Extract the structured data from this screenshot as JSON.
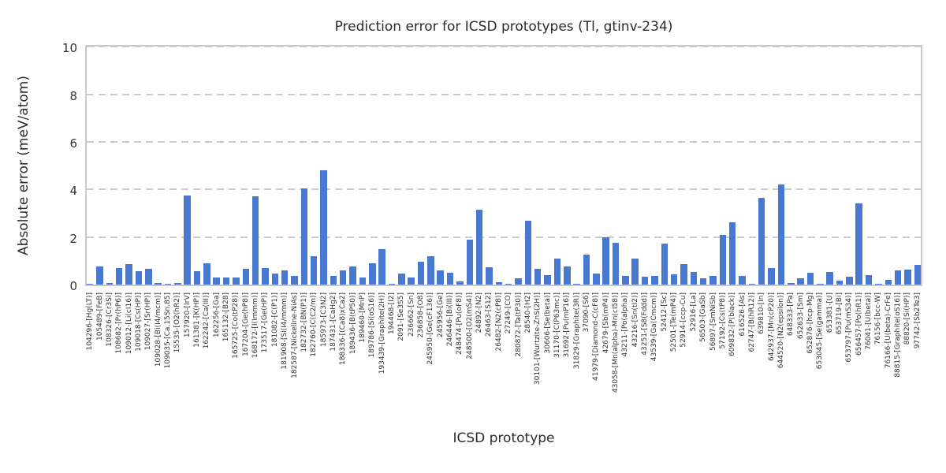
{
  "chart_data": {
    "type": "bar",
    "title": "Prediction error for ICSD prototypes (Tl, gtinv-234)",
    "xlabel": "ICSD prototype",
    "ylabel": "Absolute error (meV/atom)",
    "ylim": [
      0,
      10
    ],
    "yticks": [
      0,
      2,
      4,
      6,
      8,
      10
    ],
    "grid": "horizontal-dashed",
    "legend_position": "none",
    "bar_color": "#4878d0",
    "categories": [
      "104296-[Hg(LT)]",
      "105489-[FeB]",
      "108326-[Cr3Si]",
      "108682-[Pr(hP6)]",
      "109012-[Li(cI16)]",
      "109018-[Cs(HP)]",
      "109027-[Sr(HP)]",
      "109028-[Bi(I4/mcm)]",
      "109035-[Ca.15Sn.85]",
      "15535-[O2(hR2)]",
      "157920-[IrV]",
      "161381-[K(HP)]",
      "162242-[Ca(III)]",
      "162256-[Ga]",
      "165132-[B28]",
      "165725-[Co(tP28)]",
      "167204-[Ge(hP8)]",
      "168172-[I(Immm)]",
      "173517-[Ge(HP)]",
      "181082-[C(P1)]",
      "181908-[Si(I4/mmm)]",
      "182587-[Nickeline-NiAs]",
      "182732-[BN(P1)]",
      "182760-[C(C2/m)]",
      "185973-[C3N2]",
      "187431-[CaHg2]",
      "188336-[(Ca8)xCa2]",
      "189436-[B(tP50)]",
      "189460-[MnP]",
      "189786-[Si(oS16)]",
      "193439-[Graphite(2H)]",
      "194468-[I2]",
      "2091-[Se3S5]",
      "236662-[Sn]",
      "236858-[O8]",
      "245950-[Ge(cF136)]",
      "245956-[Ge]",
      "246446-[Bi(III)]",
      "248474-[Pu(oF8)]",
      "248500-[O2(mS4)]",
      "24892-[N2]",
      "26463-[S12]",
      "26482-[N2(cP8)]",
      "27249-[CO]",
      "280872-[Ta(tP30)]",
      "28540-[H2]",
      "30101-[Wurtzite-ZnS(2H)]",
      "30606-[Se(beta)]",
      "31170-[C(P63mc)]",
      "31692-[Pu(mP16)]",
      "31829-[Graphite(3R)]",
      "37090-[S6]",
      "41979-[Diamond-C(cF8)]",
      "42679-[Sb(mP4)]",
      "43058-[Mn(alpha)-Mn(cI58)]",
      "43211-[Po(alpha)]",
      "43216-[Sn(tI2)]",
      "43251-[S8(Fddd)]",
      "43539-[Ga(Cmcm)]",
      "52412-[Sc]",
      "52501-[Te(mP4)]",
      "52914-[ccp-Cu]",
      "52916-[La]",
      "56503-[GaSb]",
      "56897-[SmNiSb]",
      "57192-[Cs(tP8)]",
      "609832-[P(black)]",
      "616526-[As]",
      "62747-[B(hR12)]",
      "639810-[In]",
      "642937-[Mn(cP20)]",
      "644520-[N2(epsilon)]",
      "648333-[Pa]",
      "652633-[Sm]",
      "652876-[hcp-Mg]",
      "653045-[Se(gamma)]",
      "653381-[U]",
      "653719-[Bi]",
      "653797-[Pu(mS34)]",
      "656457-[Po(hR1)]",
      "76041-[U(beta)]",
      "76156-[bcc-W]",
      "76166-[U(beta)-CrFe]",
      "88815-[Graphite(oS16)]",
      "88820-[Si(HP)]",
      "97742-[Sb2Te3]"
    ],
    "values": [
      0.05,
      0.75,
      0.08,
      0.7,
      0.85,
      0.55,
      0.65,
      0.08,
      0.02,
      0.08,
      3.75,
      0.55,
      0.9,
      0.3,
      0.3,
      0.3,
      0.65,
      3.7,
      0.7,
      0.45,
      0.6,
      0.35,
      4.05,
      1.2,
      4.8,
      0.35,
      0.6,
      0.75,
      0.3,
      0.9,
      1.5,
      0.02,
      0.45,
      0.3,
      0.95,
      1.2,
      0.6,
      0.5,
      0.12,
      1.9,
      3.15,
      0.73,
      0.1,
      0.03,
      0.25,
      2.7,
      0.65,
      0.4,
      1.1,
      0.77,
      0.05,
      1.25,
      0.47,
      2.0,
      1.75,
      0.37,
      1.1,
      0.33,
      0.36,
      1.72,
      0.43,
      0.85,
      0.52,
      0.28,
      0.36,
      2.1,
      2.63,
      0.36,
      0.02,
      3.65,
      0.7,
      4.2,
      0.08,
      0.28,
      0.5,
      0.02,
      0.52,
      0.17,
      0.33,
      3.4,
      0.4,
      0.02,
      0.2,
      0.6,
      0.62,
      0.83
    ]
  }
}
